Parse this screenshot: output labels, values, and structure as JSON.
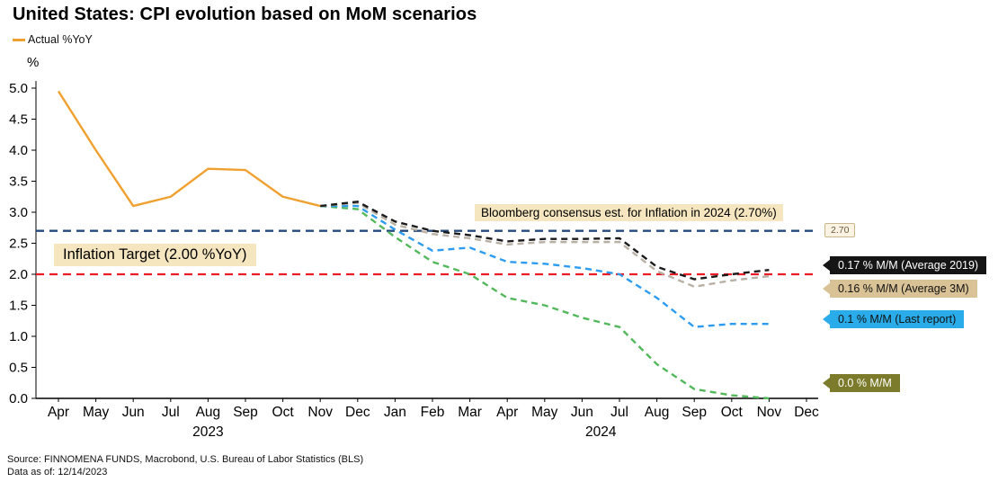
{
  "title": "United States: CPI evolution based on MoM scenarios",
  "legend": {
    "actual_label": "Actual %YoY"
  },
  "axes": {
    "y_unit": "%"
  },
  "annotations": {
    "bloomberg": "Bloomberg consensus est. for Inflation in 2024 (2.70%)",
    "inflation_target": "Inflation Target (2.00 %YoY)",
    "consensus_tag": "2.70"
  },
  "callouts": [
    {
      "label": "0.17 % M/M (Average 2019)",
      "bg": "#151515",
      "fg": "#ffffff"
    },
    {
      "label": "0.16 % M/M (Average 3M)",
      "bg": "#D9C296",
      "fg": "#111111"
    },
    {
      "label": "0.1 % M/M (Last report)",
      "bg": "#29ACE9",
      "fg": "#111111"
    },
    {
      "label": "0.0 % M/M",
      "bg": "#7B7B2B",
      "fg": "#ffffff"
    }
  ],
  "footer": {
    "source": "Source: FINNOMENA FUNDS, Macrobond, U.S. Bureau of Labor Statistics (BLS)",
    "data_as_of": "Data as of: 12/14/2023"
  },
  "chart_data": {
    "type": "line",
    "title": "United States: CPI evolution based on MoM scenarios",
    "ylabel": "%",
    "ylim": [
      0.0,
      5.0
    ],
    "ytick_step": 0.5,
    "grid": false,
    "x": [
      "Apr",
      "May",
      "Jun",
      "Jul",
      "Aug",
      "Sep",
      "Oct",
      "Nov",
      "Dec",
      "Jan",
      "Feb",
      "Mar",
      "Apr",
      "May",
      "Jun",
      "Jul",
      "Aug",
      "Sep",
      "Oct",
      "Nov",
      "Dec"
    ],
    "years": [
      {
        "label": "2023",
        "start": 0,
        "end": 8
      },
      {
        "label": "2024",
        "start": 9,
        "end": 20
      }
    ],
    "ref_lines": [
      {
        "value": 2.7,
        "color": "#24497E",
        "dash": "9,6"
      },
      {
        "value": 2.0,
        "color": "#EC1C24",
        "dash": "9,6"
      }
    ],
    "series": [
      {
        "name": "Actual %YoY",
        "color": "#F0A030",
        "dash": null,
        "values": [
          4.95,
          4.0,
          3.1,
          3.25,
          3.7,
          3.68,
          3.25,
          3.1,
          null,
          null,
          null,
          null,
          null,
          null,
          null,
          null,
          null,
          null,
          null,
          null,
          null
        ]
      },
      {
        "name": "0.17 % M/M (Average 2019)",
        "color": "#1B1B1B",
        "dash": "7,5",
        "values": [
          null,
          null,
          null,
          null,
          null,
          null,
          null,
          3.1,
          3.17,
          2.85,
          2.7,
          2.63,
          2.53,
          2.57,
          2.57,
          2.58,
          2.12,
          1.92,
          2.0,
          2.07,
          null
        ]
      },
      {
        "name": "0.16 % M/M (Average 3M)",
        "color": "#B8B0A4",
        "dash": "7,5",
        "values": [
          null,
          null,
          null,
          null,
          null,
          null,
          null,
          3.1,
          3.15,
          2.8,
          2.65,
          2.58,
          2.48,
          2.52,
          2.52,
          2.52,
          2.05,
          1.8,
          1.9,
          1.97,
          null
        ]
      },
      {
        "name": "0.1 % M/M (Last report)",
        "color": "#2D9BF0",
        "dash": "7,5",
        "values": [
          null,
          null,
          null,
          null,
          null,
          null,
          null,
          3.1,
          3.1,
          2.72,
          2.38,
          2.43,
          2.2,
          2.17,
          2.1,
          2.0,
          1.62,
          1.15,
          1.2,
          1.2,
          null
        ]
      },
      {
        "name": "0.0 % M/M",
        "color": "#53B85B",
        "dash": "7,5",
        "values": [
          null,
          null,
          null,
          null,
          null,
          null,
          null,
          3.1,
          3.05,
          2.6,
          2.2,
          2.0,
          1.62,
          1.5,
          1.3,
          1.15,
          0.55,
          0.15,
          0.05,
          0.0,
          null
        ]
      }
    ]
  }
}
